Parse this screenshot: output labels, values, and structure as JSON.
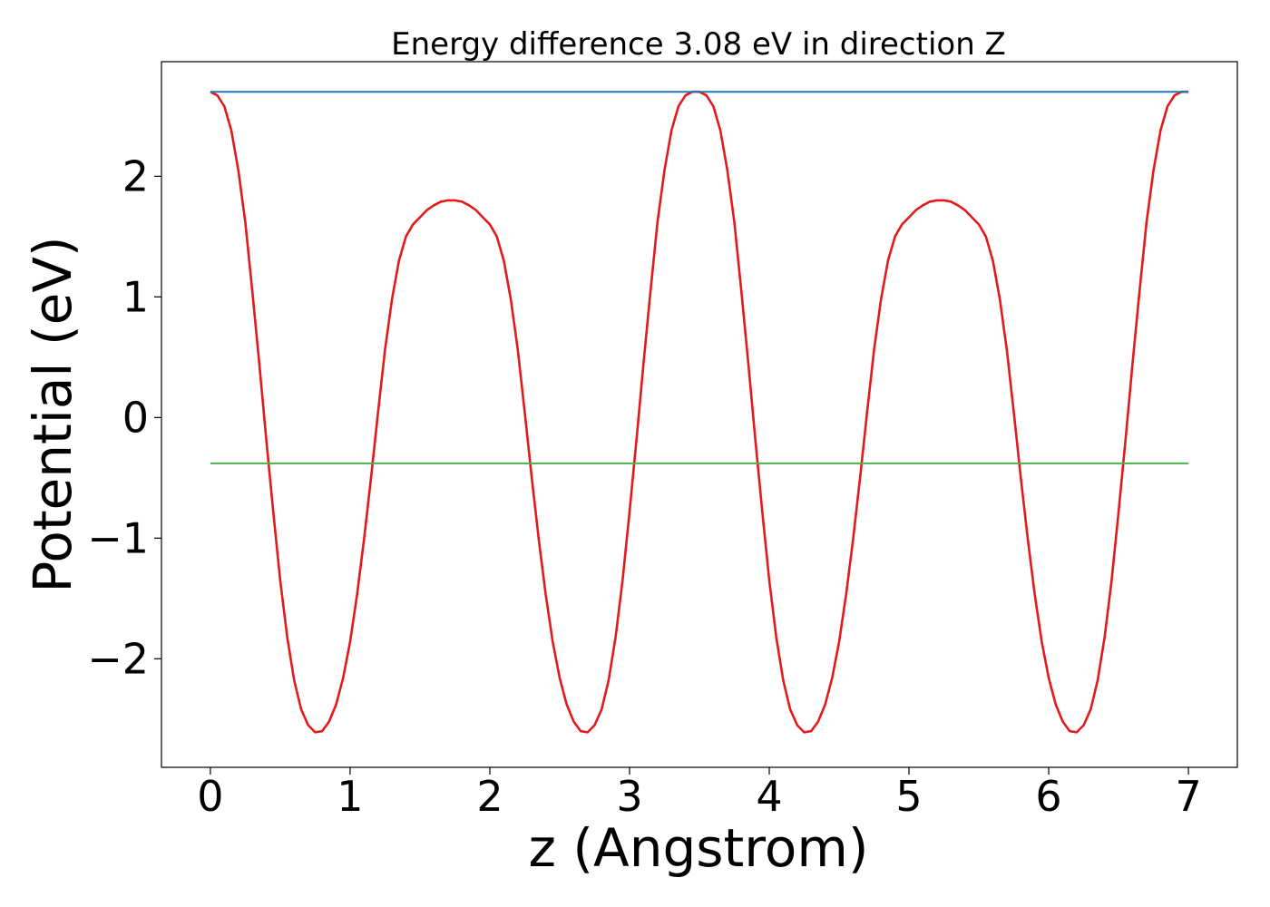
{
  "chart_data": {
    "type": "line",
    "title": "Energy difference 3.08 eV in direction Z",
    "xlabel": "z (Angstrom)",
    "ylabel": "Potential (eV)",
    "xlim": [
      -0.35,
      7.35
    ],
    "ylim": [
      -2.9,
      2.95
    ],
    "x_ticks": [
      0,
      1,
      2,
      3,
      4,
      5,
      6,
      7
    ],
    "x_tick_labels": [
      "0",
      "1",
      "2",
      "3",
      "4",
      "5",
      "6",
      "7"
    ],
    "y_ticks": [
      2,
      1,
      0,
      -1,
      -2
    ],
    "y_tick_labels": [
      "2",
      "1",
      "0",
      "−1",
      "−2"
    ],
    "grid": false,
    "legend": "none",
    "series": [
      {
        "color": "#e31a1c",
        "x": [
          0.0,
          0.05,
          0.1,
          0.15,
          0.2,
          0.25,
          0.3,
          0.35,
          0.4,
          0.45,
          0.5,
          0.55,
          0.6,
          0.65,
          0.7,
          0.75,
          0.8,
          0.85,
          0.9,
          0.95,
          1.0,
          1.05,
          1.1,
          1.15,
          1.2,
          1.25,
          1.3,
          1.35,
          1.4,
          1.45,
          1.5,
          1.55,
          1.6,
          1.65,
          1.7,
          1.75,
          1.8,
          1.85,
          1.9,
          1.95,
          2.0,
          2.05,
          2.1,
          2.15,
          2.2,
          2.25,
          2.3,
          2.35,
          2.4,
          2.45,
          2.5,
          2.55,
          2.6,
          2.65,
          2.7,
          2.75,
          2.8,
          2.85,
          2.9,
          2.95,
          3.0,
          3.05,
          3.1,
          3.15,
          3.2,
          3.25,
          3.3,
          3.35,
          3.4,
          3.45,
          3.5,
          3.55,
          3.6,
          3.65,
          3.7,
          3.75,
          3.8,
          3.85,
          3.9,
          3.95,
          4.0,
          4.05,
          4.1,
          4.15,
          4.2,
          4.25,
          4.3,
          4.35,
          4.4,
          4.45,
          4.5,
          4.55,
          4.6,
          4.65,
          4.7,
          4.75,
          4.8,
          4.85,
          4.9,
          4.95,
          5.0,
          5.05,
          5.1,
          5.15,
          5.2,
          5.25,
          5.3,
          5.35,
          5.4,
          5.45,
          5.5,
          5.55,
          5.6,
          5.65,
          5.7,
          5.75,
          5.8,
          5.85,
          5.9,
          5.95,
          6.0,
          6.05,
          6.1,
          6.15,
          6.2,
          6.25,
          6.3,
          6.35,
          6.4,
          6.45,
          6.5,
          6.55,
          6.6,
          6.65,
          6.7,
          6.75,
          6.8,
          6.85,
          6.9,
          6.95,
          7.0
        ],
        "y": [
          2.7,
          2.67,
          2.58,
          2.38,
          2.05,
          1.62,
          1.05,
          0.45,
          -0.18,
          -0.78,
          -1.35,
          -1.82,
          -2.18,
          -2.42,
          -2.55,
          -2.61,
          -2.6,
          -2.52,
          -2.38,
          -2.16,
          -1.86,
          -1.47,
          -1.01,
          -0.5,
          0.04,
          0.56,
          0.98,
          1.3,
          1.5,
          1.6,
          1.66,
          1.72,
          1.76,
          1.79,
          1.8,
          1.8,
          1.79,
          1.76,
          1.72,
          1.66,
          1.6,
          1.5,
          1.3,
          0.98,
          0.56,
          0.04,
          -0.5,
          -1.01,
          -1.47,
          -1.86,
          -2.16,
          -2.38,
          -2.52,
          -2.6,
          -2.61,
          -2.55,
          -2.42,
          -2.18,
          -1.82,
          -1.35,
          -0.78,
          -0.18,
          0.45,
          1.05,
          1.62,
          2.05,
          2.38,
          2.58,
          2.67,
          2.7,
          2.7,
          2.67,
          2.58,
          2.38,
          2.05,
          1.62,
          1.05,
          0.45,
          -0.18,
          -0.78,
          -1.35,
          -1.82,
          -2.18,
          -2.42,
          -2.55,
          -2.61,
          -2.6,
          -2.52,
          -2.38,
          -2.16,
          -1.86,
          -1.47,
          -1.01,
          -0.5,
          0.04,
          0.56,
          0.98,
          1.3,
          1.5,
          1.6,
          1.66,
          1.72,
          1.76,
          1.79,
          1.8,
          1.8,
          1.79,
          1.76,
          1.72,
          1.66,
          1.6,
          1.5,
          1.3,
          0.98,
          0.56,
          0.04,
          -0.5,
          -1.01,
          -1.47,
          -1.86,
          -2.16,
          -2.38,
          -2.52,
          -2.6,
          -2.61,
          -2.55,
          -2.42,
          -2.18,
          -1.82,
          -1.35,
          -0.78,
          -0.18,
          0.45,
          1.05,
          1.62,
          2.05,
          2.38,
          2.58,
          2.67,
          2.7,
          2.7
        ]
      },
      {
        "color": "#1f77b4",
        "x": [
          0.0,
          7.0
        ],
        "y": [
          2.7,
          2.7
        ]
      },
      {
        "color": "#4daf4a",
        "x": [
          0.0,
          7.0
        ],
        "y": [
          -0.38,
          -0.38
        ]
      }
    ]
  }
}
